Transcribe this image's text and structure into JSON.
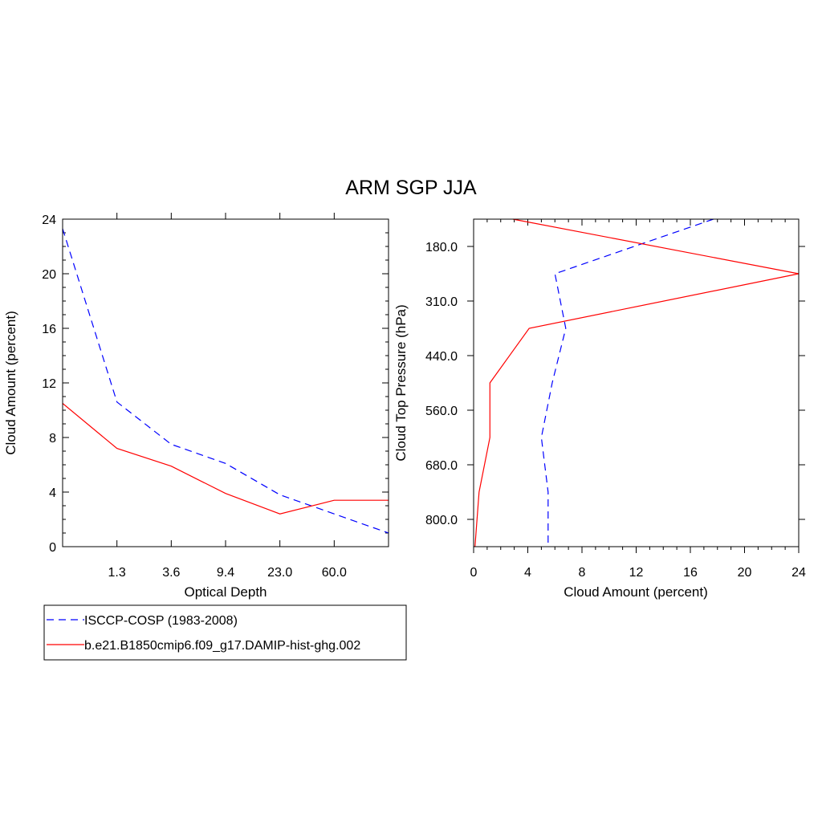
{
  "title": "ARM SGP JJA",
  "colors": {
    "obs": "#0000ff",
    "model": "#ff0000",
    "axes": "#000000"
  },
  "legend": {
    "entries": [
      {
        "label": "ISCCP-COSP (1983-2008)",
        "color": "#0000ff",
        "dash": "dashed"
      },
      {
        "label": "b.e21.B1850cmip6.f09_g17.DAMIP-hist-ghg.002",
        "color": "#ff0000",
        "dash": "solid"
      }
    ]
  },
  "chart_data": [
    {
      "type": "line",
      "xlabel": "Optical Depth",
      "ylabel": "Cloud Amount (percent)",
      "x_categories_count": 7,
      "x_tick_labels": [
        "1.3",
        "3.6",
        "9.4",
        "23.0",
        "60.0"
      ],
      "x_tick_positions": [
        1,
        2,
        3,
        4,
        5
      ],
      "ylim": [
        0,
        24
      ],
      "y_ticks": [
        0,
        4,
        8,
        12,
        16,
        20,
        24
      ],
      "series": [
        {
          "name": "ISCCP-COSP (1983-2008)",
          "color": "#0000ff",
          "dash": "dashed",
          "x": [
            0,
            1,
            2,
            3,
            4,
            5,
            6
          ],
          "values": [
            23.3,
            10.6,
            7.5,
            6.1,
            3.8,
            2.4,
            1.0
          ]
        },
        {
          "name": "b.e21.B1850cmip6.f09_g17.DAMIP-hist-ghg.002",
          "color": "#ff0000",
          "dash": "solid",
          "x": [
            0,
            1,
            2,
            3,
            4,
            5,
            6
          ],
          "values": [
            10.5,
            7.2,
            5.9,
            3.9,
            2.4,
            3.4,
            3.4
          ]
        }
      ]
    },
    {
      "type": "line",
      "xlabel": "Cloud Amount (percent)",
      "ylabel": "Cloud Top Pressure (hPa)",
      "xlim": [
        0,
        24
      ],
      "x_ticks": [
        0,
        4,
        8,
        12,
        16,
        20,
        24
      ],
      "y_levels_count": 7,
      "y_tick_labels": [
        "180.0",
        "310.0",
        "440.0",
        "560.0",
        "680.0",
        "800.0"
      ],
      "y_tick_positions": [
        0.5,
        1.5,
        2.5,
        3.5,
        4.5,
        5.5
      ],
      "series": [
        {
          "name": "ISCCP-COSP (1983-2008)",
          "color": "#0000ff",
          "dash": "dashed",
          "level": [
            0,
            1,
            2,
            3,
            4,
            5,
            6
          ],
          "values": [
            17.7,
            6.0,
            6.8,
            5.8,
            5.0,
            5.5,
            5.5
          ]
        },
        {
          "name": "b.e21.B1850cmip6.f09_g17.DAMIP-hist-ghg.002",
          "color": "#ff0000",
          "dash": "solid",
          "level": [
            0,
            1,
            2,
            3,
            4,
            5,
            6
          ],
          "values": [
            2.9,
            24.0,
            4.1,
            1.2,
            1.2,
            0.4,
            0.1
          ]
        }
      ]
    }
  ]
}
